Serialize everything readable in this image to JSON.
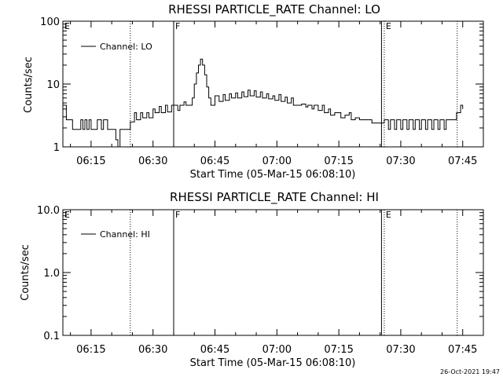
{
  "footer": {
    "timestamp": "26-Oct-2021 19:47"
  },
  "chart_data": [
    {
      "type": "line",
      "title": "RHESSI PARTICLE_RATE Channel: LO",
      "xlabel": "Start Time (05-Mar-15 06:08:10)",
      "ylabel": "Counts/sec",
      "y_scale": "log",
      "ylim": [
        1,
        100
      ],
      "y_ticks": [
        "1",
        "10",
        "100"
      ],
      "xlim": [
        "06:08:10",
        "07:50:00"
      ],
      "x_ticks": [
        "06:15",
        "06:30",
        "06:45",
        "07:00",
        "07:15",
        "07:30",
        "07:45"
      ],
      "legend": {
        "position": "top-left",
        "entries": [
          "Channel: LO"
        ]
      },
      "markers": [
        {
          "label": "E",
          "time": "06:08:10",
          "style": "dotted"
        },
        {
          "label": "",
          "time": "06:24:30",
          "style": "dotted"
        },
        {
          "label": "F",
          "time": "06:35:00",
          "style": "solid"
        },
        {
          "label": "",
          "time": "07:25:20",
          "style": "solid"
        },
        {
          "label": "E",
          "time": "07:26:00",
          "style": "dotted"
        },
        {
          "label": "",
          "time": "07:43:40",
          "style": "dotted"
        }
      ],
      "series": [
        {
          "name": "Channel: LO",
          "x": [
            "06:08:10",
            "06:09:00",
            "06:09:40",
            "06:10:30",
            "06:12:00",
            "06:12:30",
            "06:13:00",
            "06:13:30",
            "06:14:00",
            "06:14:30",
            "06:15:00",
            "06:15:30",
            "06:16:00",
            "06:16:30",
            "06:17:30",
            "06:18:00",
            "06:19:00",
            "06:19:30",
            "06:20:00",
            "06:20:30",
            "06:21:00",
            "06:21:30",
            "06:22:00",
            "06:22:30",
            "06:23:00",
            "06:24:30",
            "06:25:30",
            "06:26:00",
            "06:27:00",
            "06:27:30",
            "06:28:30",
            "06:29:00",
            "06:30:00",
            "06:30:30",
            "06:31:30",
            "06:32:00",
            "06:33:00",
            "06:33:30",
            "06:34:30",
            "06:35:00",
            "06:36:00",
            "06:36:30",
            "06:37:30",
            "06:38:00",
            "06:39:00",
            "06:39:30",
            "06:40:00",
            "06:40:30",
            "06:41:00",
            "06:41:30",
            "06:42:00",
            "06:42:30",
            "06:43:00",
            "06:43:30",
            "06:44:00",
            "06:45:00",
            "06:46:00",
            "06:47:00",
            "06:47:30",
            "06:48:30",
            "06:49:00",
            "06:50:00",
            "06:50:30",
            "06:51:30",
            "06:52:00",
            "06:53:00",
            "06:53:30",
            "06:54:30",
            "06:55:00",
            "06:56:00",
            "06:56:30",
            "06:57:30",
            "06:58:00",
            "06:59:00",
            "06:59:30",
            "07:00:30",
            "07:01:00",
            "07:02:00",
            "07:02:30",
            "07:03:30",
            "07:04:00",
            "07:05:00",
            "07:06:00",
            "07:07:00",
            "07:07:30",
            "07:08:30",
            "07:09:00",
            "07:10:00",
            "07:11:00",
            "07:11:30",
            "07:12:30",
            "07:13:00",
            "07:14:00",
            "07:15:00",
            "07:15:30",
            "07:16:30",
            "07:17:30",
            "07:18:00",
            "07:19:00",
            "07:20:00",
            "07:21:00",
            "07:22:00",
            "07:23:00",
            "07:24:00",
            "07:25:00",
            "07:26:00",
            "07:27:00",
            "07:27:30",
            "07:28:30",
            "07:29:00",
            "07:30:00",
            "07:30:30",
            "07:31:30",
            "07:32:00",
            "07:33:00",
            "07:33:30",
            "07:34:30",
            "07:35:00",
            "07:36:00",
            "07:36:30",
            "07:37:30",
            "07:38:00",
            "07:39:00",
            "07:39:30",
            "07:40:30",
            "07:41:00",
            "07:42:00",
            "07:42:30",
            "07:43:30",
            "07:44:30",
            "07:45:00"
          ],
          "y": [
            4.6,
            2.7,
            2.7,
            1.9,
            1.9,
            2.7,
            1.9,
            2.7,
            1.9,
            2.7,
            1.9,
            1.9,
            1.9,
            2.7,
            1.9,
            2.7,
            1.9,
            1.9,
            1.9,
            1.9,
            1.3,
            1.0,
            1.9,
            1.9,
            1.9,
            2.5,
            3.5,
            2.7,
            3.5,
            2.9,
            3.5,
            2.9,
            4.0,
            3.5,
            4.4,
            3.5,
            4.6,
            3.6,
            4.6,
            4.6,
            3.8,
            4.6,
            5.2,
            4.6,
            4.6,
            6.0,
            10,
            15,
            20,
            25,
            20,
            14,
            9,
            6,
            4.6,
            6.5,
            5.3,
            6.8,
            5.5,
            7.0,
            6.0,
            7.2,
            6.0,
            7.5,
            6.3,
            8.0,
            6.5,
            7.8,
            6.2,
            7.5,
            6.0,
            7.0,
            5.8,
            6.5,
            5.5,
            6.8,
            5.3,
            6.2,
            5.0,
            6.0,
            4.6,
            4.6,
            4.8,
            4.3,
            4.6,
            4.0,
            4.6,
            3.8,
            4.6,
            3.5,
            4.0,
            3.2,
            3.5,
            3.5,
            2.9,
            3.2,
            3.5,
            2.7,
            2.9,
            2.7,
            2.7,
            2.7,
            2.4,
            2.4,
            2.4,
            2.7,
            1.9,
            2.7,
            1.9,
            2.7,
            1.9,
            2.7,
            1.9,
            2.7,
            1.9,
            2.7,
            1.9,
            2.7,
            1.9,
            2.7,
            1.9,
            2.7,
            1.9,
            2.7,
            1.9,
            2.7,
            2.7,
            2.7,
            3.5,
            4.6,
            4.0
          ]
        }
      ]
    },
    {
      "type": "line",
      "title": "RHESSI PARTICLE_RATE Channel: HI",
      "xlabel": "Start Time (05-Mar-15 06:08:10)",
      "ylabel": "Counts/sec",
      "y_scale": "log",
      "ylim": [
        0.1,
        10
      ],
      "y_ticks": [
        "0.1",
        "1.0",
        "10.0"
      ],
      "xlim": [
        "06:08:10",
        "07:50:00"
      ],
      "x_ticks": [
        "06:15",
        "06:30",
        "06:45",
        "07:00",
        "07:15",
        "07:30",
        "07:45"
      ],
      "legend": {
        "position": "top-left",
        "entries": [
          "Channel: HI"
        ]
      },
      "markers": [
        {
          "label": "E",
          "time": "06:08:10",
          "style": "dotted"
        },
        {
          "label": "",
          "time": "06:24:30",
          "style": "dotted"
        },
        {
          "label": "F",
          "time": "06:35:00",
          "style": "solid"
        },
        {
          "label": "",
          "time": "07:25:20",
          "style": "solid"
        },
        {
          "label": "E",
          "time": "07:26:00",
          "style": "dotted"
        },
        {
          "label": "",
          "time": "07:43:40",
          "style": "dotted"
        }
      ],
      "series": [
        {
          "name": "Channel: HI",
          "x": [],
          "y": []
        }
      ]
    }
  ]
}
